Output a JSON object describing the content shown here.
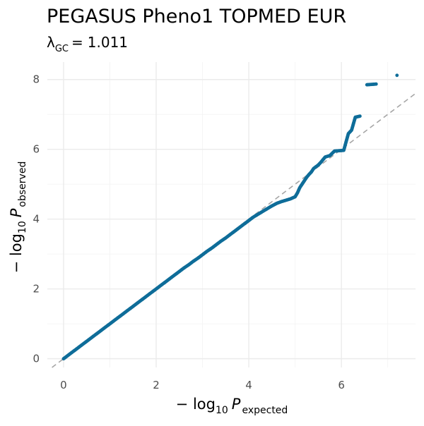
{
  "chart_data": {
    "type": "scatter",
    "title": "PEGASUS Pheno1 TOPMED EUR",
    "subtitle": {
      "lambda_symbol": "λ",
      "lambda_subscript": "GC",
      "equals": "=",
      "value": "1.011"
    },
    "xlabel": {
      "prefix": "− log",
      "base": "10",
      "variable": "P",
      "subscript": "expected"
    },
    "ylabel": {
      "prefix": "− log",
      "base": "10",
      "variable": "P",
      "subscript": "observed"
    },
    "xlim": [
      -0.35,
      7.6
    ],
    "ylim": [
      -0.25,
      8.5
    ],
    "x_ticks": [
      0,
      2,
      4,
      6
    ],
    "y_ticks": [
      0,
      2,
      4,
      6,
      8
    ],
    "x_tick_labels": [
      "0",
      "2",
      "4",
      "6"
    ],
    "y_tick_labels": [
      "0",
      "2",
      "4",
      "6",
      "8"
    ],
    "grid": true,
    "point_color": "#0f6d99",
    "reference_line": {
      "slope": 1,
      "intercept": 0,
      "color": "#a6a6a6",
      "style": "dashed"
    },
    "series": [
      {
        "points": [
          [
            0.0,
            0.0
          ],
          [
            0.05,
            0.05
          ],
          [
            0.1,
            0.1
          ],
          [
            0.15,
            0.15
          ],
          [
            0.2,
            0.2
          ],
          [
            0.3,
            0.3
          ],
          [
            0.4,
            0.4
          ],
          [
            0.5,
            0.5
          ],
          [
            0.6,
            0.6
          ],
          [
            0.7,
            0.7
          ],
          [
            0.8,
            0.8
          ],
          [
            0.9,
            0.9
          ],
          [
            1.0,
            1.0
          ],
          [
            1.1,
            1.1
          ],
          [
            1.2,
            1.2
          ],
          [
            1.3,
            1.3
          ],
          [
            1.4,
            1.4
          ],
          [
            1.5,
            1.5
          ],
          [
            1.6,
            1.6
          ],
          [
            1.7,
            1.7
          ],
          [
            1.8,
            1.8
          ],
          [
            1.9,
            1.9
          ],
          [
            2.0,
            2.0
          ],
          [
            2.1,
            2.1
          ],
          [
            2.2,
            2.2
          ],
          [
            2.3,
            2.3
          ],
          [
            2.4,
            2.4
          ],
          [
            2.5,
            2.5
          ],
          [
            2.6,
            2.6
          ],
          [
            2.7,
            2.69
          ],
          [
            2.8,
            2.79
          ],
          [
            2.9,
            2.88
          ],
          [
            3.0,
            2.98
          ],
          [
            3.1,
            3.08
          ],
          [
            3.2,
            3.17
          ],
          [
            3.3,
            3.27
          ],
          [
            3.4,
            3.37
          ],
          [
            3.5,
            3.46
          ],
          [
            3.6,
            3.56
          ],
          [
            3.7,
            3.66
          ],
          [
            3.8,
            3.76
          ],
          [
            3.9,
            3.86
          ],
          [
            4.0,
            3.96
          ],
          [
            4.1,
            4.06
          ],
          [
            4.2,
            4.14
          ],
          [
            4.3,
            4.22
          ],
          [
            4.4,
            4.3
          ],
          [
            4.5,
            4.38
          ],
          [
            4.6,
            4.45
          ],
          [
            4.7,
            4.5
          ],
          [
            4.8,
            4.54
          ],
          [
            4.9,
            4.58
          ],
          [
            5.0,
            4.64
          ],
          [
            5.05,
            4.75
          ],
          [
            5.1,
            4.9
          ],
          [
            5.15,
            5.0
          ],
          [
            5.2,
            5.1
          ],
          [
            5.25,
            5.2
          ],
          [
            5.3,
            5.28
          ],
          [
            5.35,
            5.35
          ],
          [
            5.4,
            5.45
          ],
          [
            5.45,
            5.5
          ],
          [
            5.5,
            5.55
          ],
          [
            5.55,
            5.62
          ],
          [
            5.6,
            5.7
          ],
          [
            5.65,
            5.78
          ],
          [
            5.7,
            5.8
          ],
          [
            5.75,
            5.82
          ],
          [
            5.85,
            5.95
          ],
          [
            5.95,
            5.96
          ],
          [
            6.05,
            5.97
          ],
          [
            6.15,
            6.45
          ],
          [
            6.22,
            6.55
          ],
          [
            6.3,
            6.92
          ],
          [
            6.4,
            6.95
          ],
          [
            6.55,
            7.85
          ],
          [
            6.75,
            7.87
          ],
          [
            7.2,
            8.12
          ]
        ]
      }
    ]
  }
}
